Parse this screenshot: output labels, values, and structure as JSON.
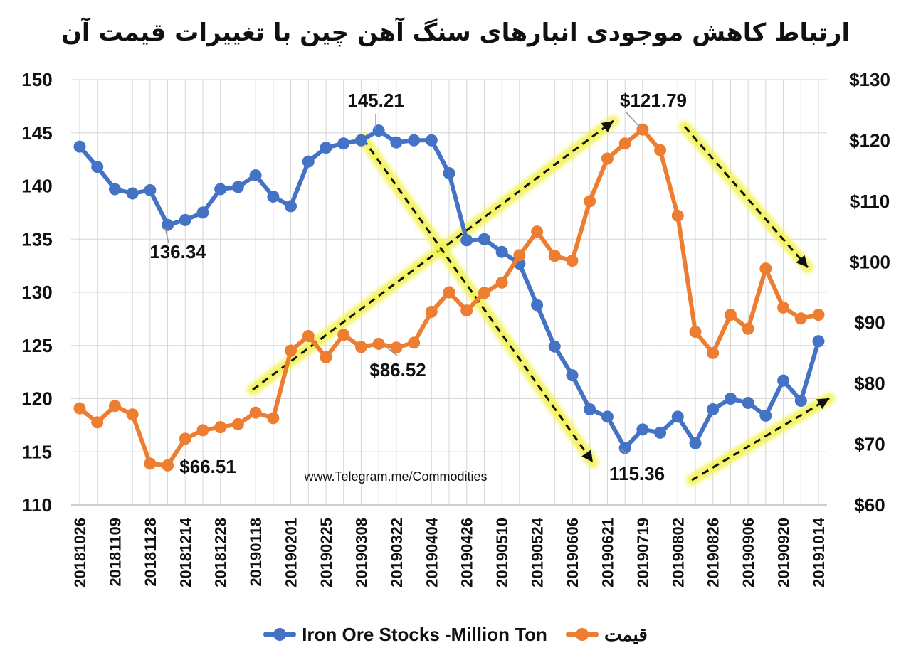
{
  "chart_data": {
    "type": "line",
    "title": "ارتباط کاهش موجودی انبارهای سنگ آهن چین با تغییرات قیمت  آن",
    "x_tick_labels": [
      "20181026",
      "20181109",
      "20181128",
      "20181214",
      "20181228",
      "20190118",
      "20190201",
      "20190225",
      "20190308",
      "20190322",
      "20190404",
      "20190426",
      "20190510",
      "20190524",
      "20190606",
      "20190621",
      "20190719",
      "20190802",
      "20190826",
      "20190906",
      "20190920",
      "20191014"
    ],
    "y_left": {
      "range": [
        110,
        150
      ],
      "ticks": [
        "110",
        "115",
        "120",
        "125",
        "130",
        "135",
        "140",
        "145",
        "150"
      ]
    },
    "y_right": {
      "range": [
        60,
        130
      ],
      "ticks": [
        "$60",
        "$70",
        "$80",
        "$90",
        "$100",
        "$110",
        "$120",
        "$130"
      ]
    },
    "grid": true,
    "legend_position": "bottom",
    "series": [
      {
        "name": "Iron Ore Stocks -Million Ton",
        "axis": "left",
        "color": "#4472C4",
        "values": [
          143.7,
          141.8,
          139.7,
          139.3,
          139.6,
          136.34,
          136.8,
          137.5,
          139.7,
          139.9,
          141.0,
          139.0,
          138.1,
          142.3,
          143.6,
          144.0,
          144.3,
          145.21,
          144.1,
          144.3,
          144.3,
          141.2,
          134.9,
          135.0,
          133.8,
          132.7,
          128.8,
          124.9,
          122.2,
          119.0,
          118.3,
          115.36,
          117.1,
          116.8,
          118.3,
          115.8,
          119.0,
          120.0,
          119.6,
          118.4,
          121.7,
          119.8,
          125.4
        ]
      },
      {
        "name": "قیمت",
        "axis": "right",
        "color": "#ED7D31",
        "values": [
          75.9,
          73.6,
          76.3,
          74.9,
          66.8,
          66.51,
          70.9,
          72.3,
          72.8,
          73.3,
          75.2,
          74.3,
          85.4,
          87.8,
          84.3,
          88.0,
          86.0,
          86.52,
          85.9,
          86.7,
          91.8,
          95.0,
          92.0,
          94.9,
          96.6,
          101.1,
          105.0,
          101.0,
          100.2,
          110.0,
          117.0,
          119.5,
          121.79,
          118.4,
          107.6,
          88.5,
          85.0,
          91.3,
          89.0,
          98.9,
          92.5,
          90.7,
          91.3
        ]
      }
    ],
    "annotations": {
      "stock_high": "145.21",
      "stock_low_1": "136.34",
      "stock_low_2": "115.36",
      "price_low": "$66.51",
      "price_mid": "$86.52",
      "price_high": "$121.79"
    },
    "watermark_url": "www.Telegram.me/Commodities"
  }
}
